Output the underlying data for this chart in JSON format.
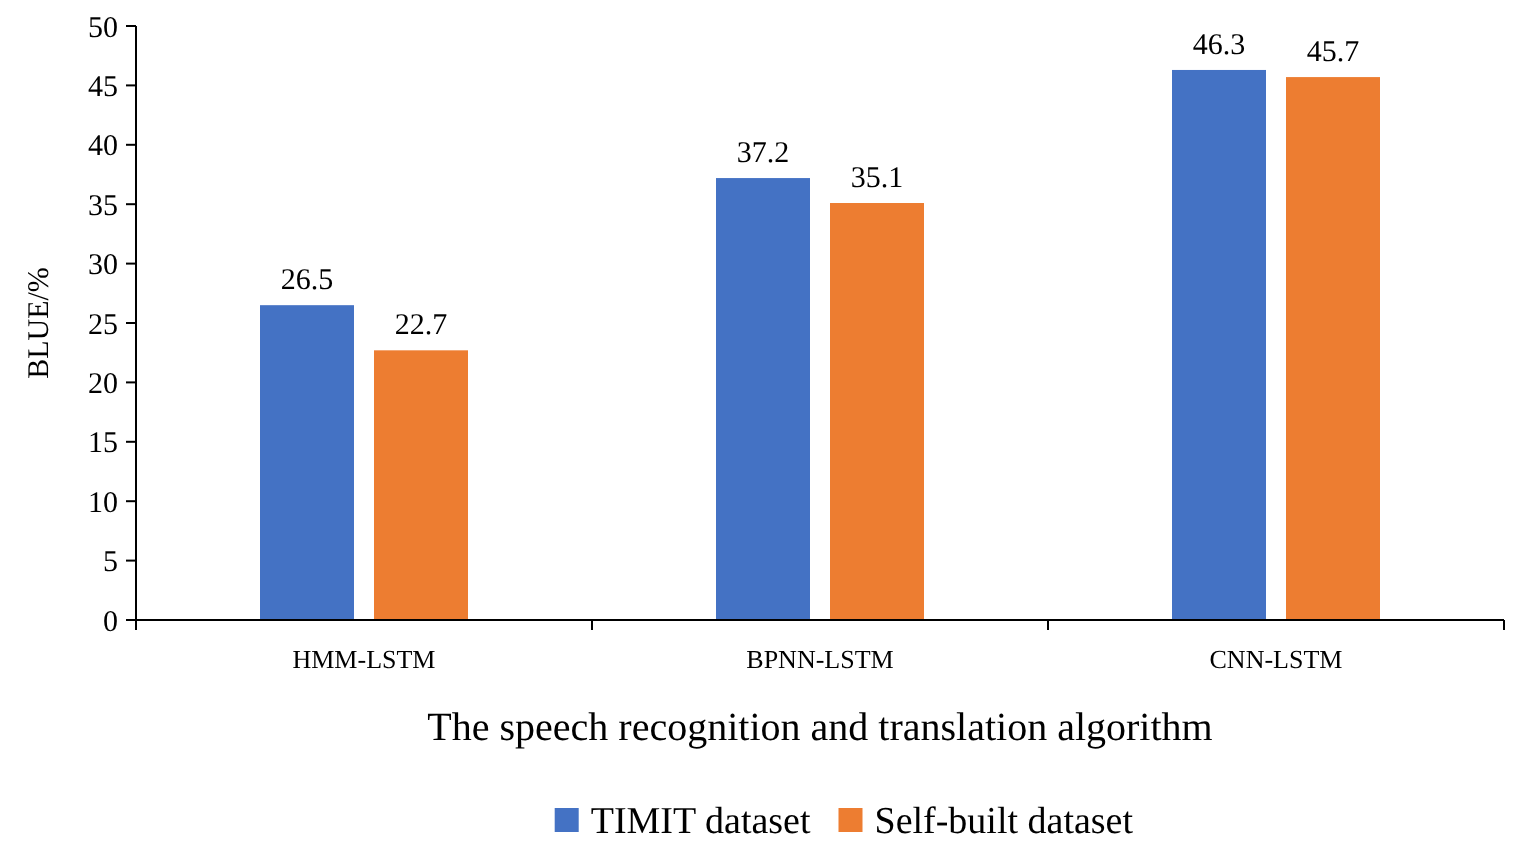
{
  "chart_data": {
    "type": "bar",
    "xlabel": "The speech recognition and translation algorithm",
    "ylabel": "BLUE/%",
    "categories": [
      "HMM-LSTM",
      "BPNN-LSTM",
      "CNN-LSTM"
    ],
    "series": [
      {
        "name": "TIMIT dataset",
        "color": "#4472c4",
        "values": [
          26.5,
          37.2,
          46.3
        ]
      },
      {
        "name": "Self-built dataset",
        "color": "#ed7d31",
        "values": [
          22.7,
          35.1,
          45.7
        ]
      }
    ],
    "ylim": [
      0,
      50
    ],
    "yticks": [
      0,
      5,
      10,
      15,
      20,
      25,
      30,
      35,
      40,
      45,
      50
    ],
    "data_labels": true,
    "legend": "bottom"
  }
}
